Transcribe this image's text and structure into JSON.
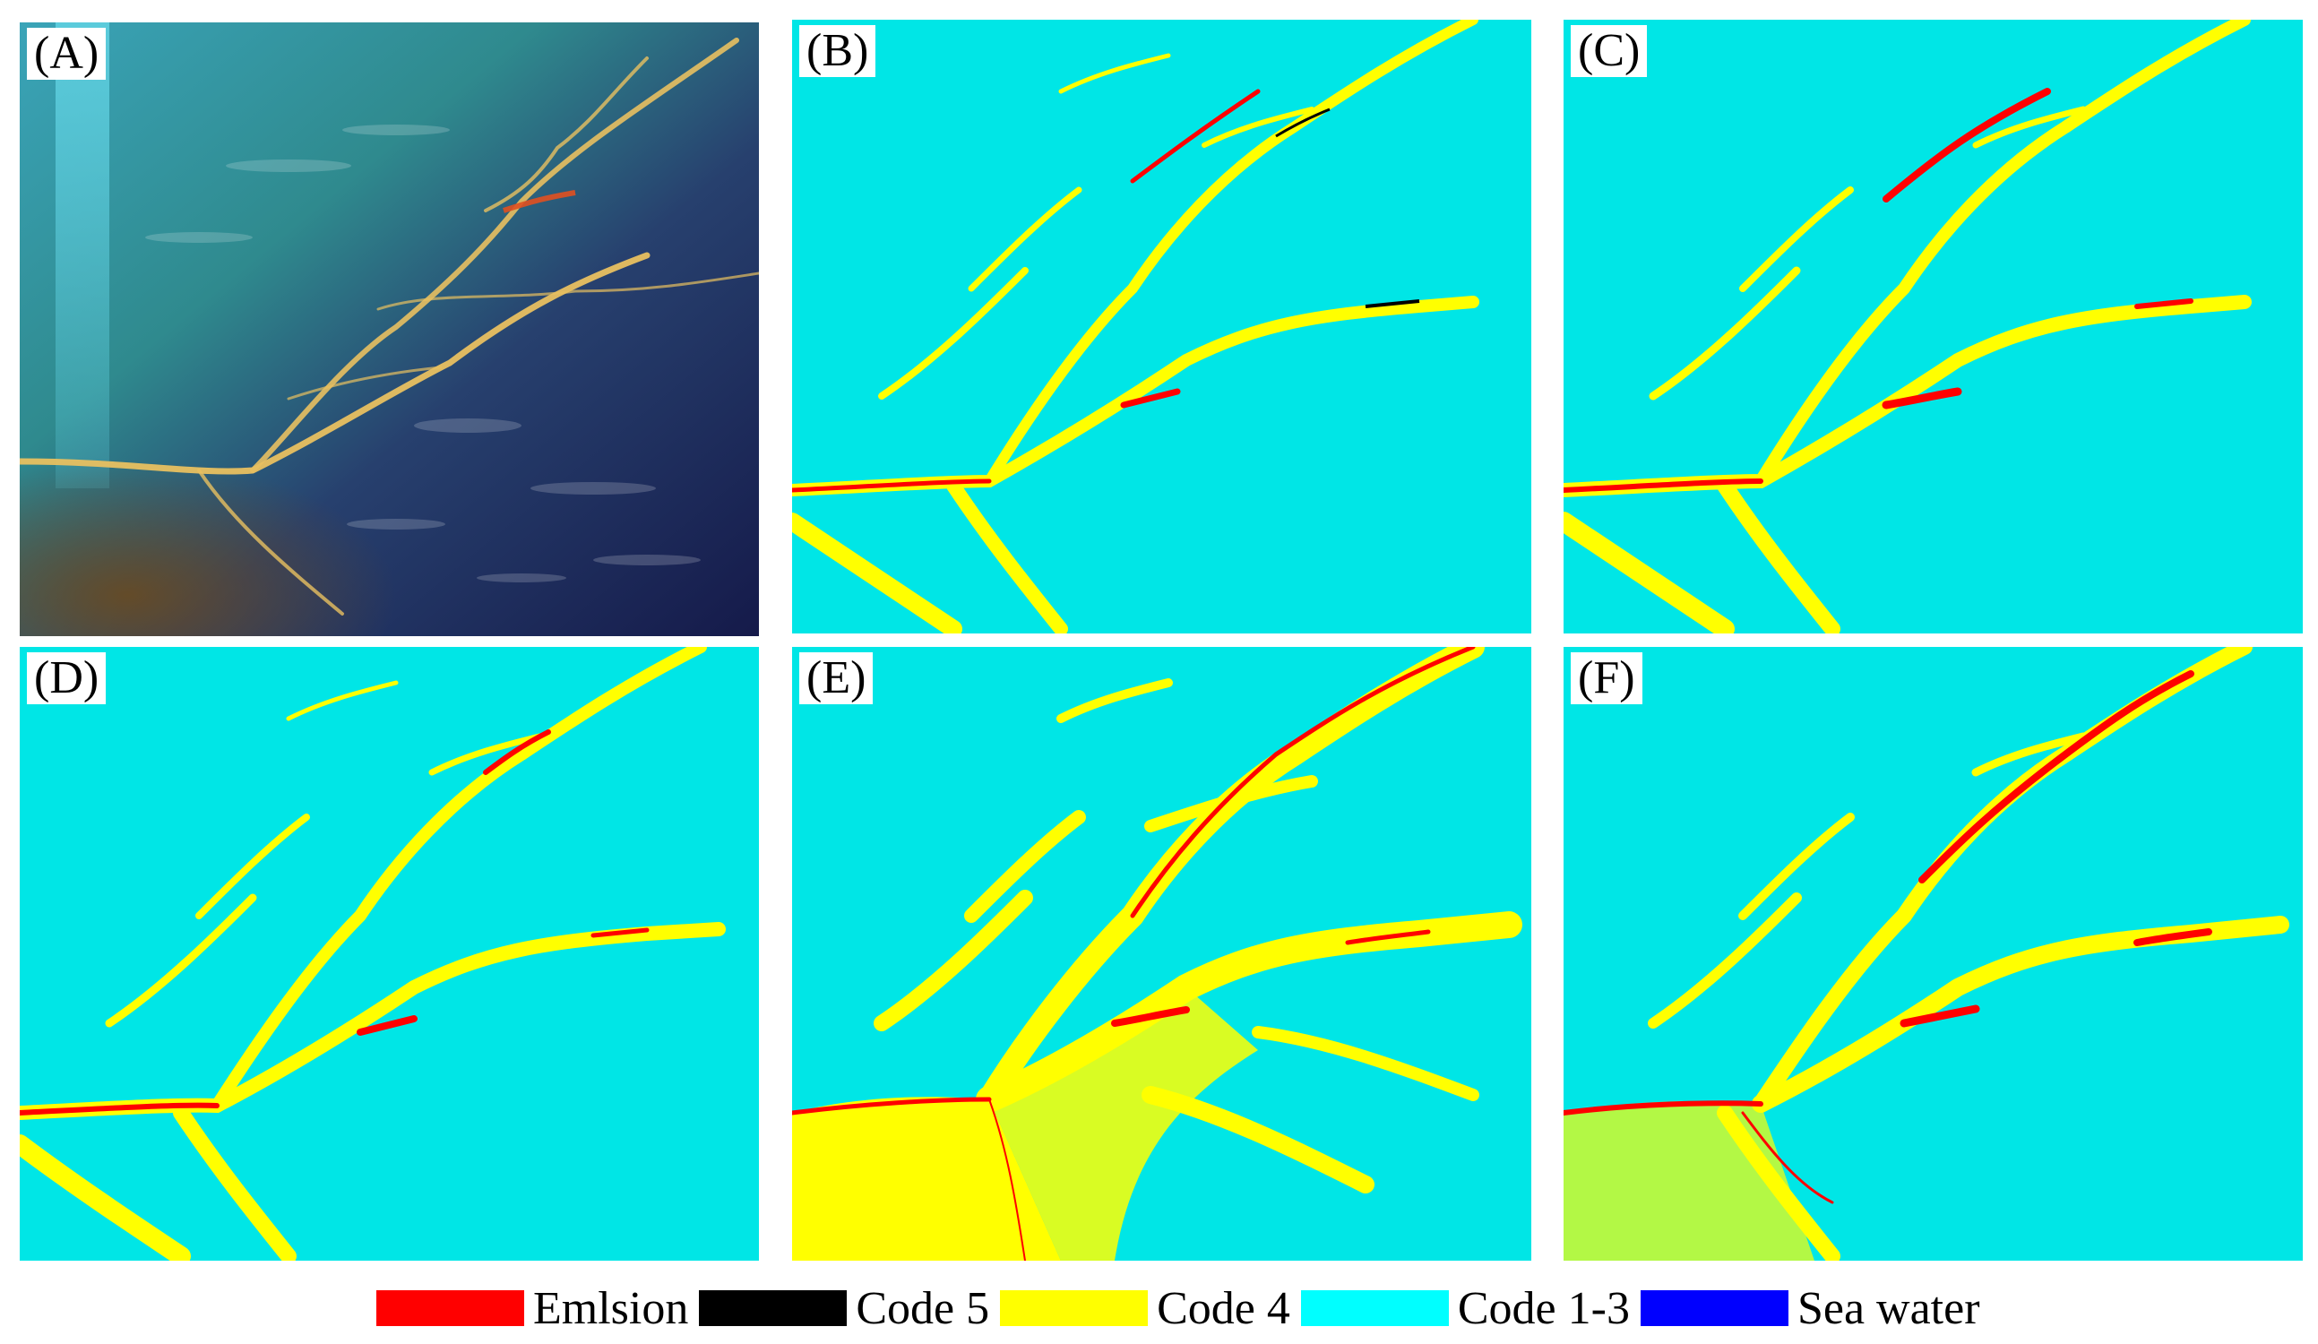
{
  "panels": [
    {
      "id": "A",
      "label": "(A)",
      "kind": "photo"
    },
    {
      "id": "B",
      "label": "(B)",
      "kind": "classification"
    },
    {
      "id": "C",
      "label": "(C)",
      "kind": "classification"
    },
    {
      "id": "D",
      "label": "(D)",
      "kind": "classification"
    },
    {
      "id": "E",
      "label": "(E)",
      "kind": "classification"
    },
    {
      "id": "F",
      "label": "(F)",
      "kind": "classification"
    }
  ],
  "legend": [
    {
      "label": "Emlsion",
      "color": "#ff0000"
    },
    {
      "label": "Code 5",
      "color": "#000000"
    },
    {
      "label": "Code 4",
      "color": "#ffff00"
    },
    {
      "label": "Code 1-3",
      "color": "#00ffff"
    },
    {
      "label": "Sea water",
      "color": "#0000ff"
    }
  ],
  "colors": {
    "background_class": "#00e6e6",
    "code4": "#ffff00",
    "emulsion": "#ff0000",
    "code5": "#000000",
    "photo_ocean": "#1a2a6e",
    "photo_shallow": "#2f8fa0",
    "photo_slick": "#e8c060"
  }
}
